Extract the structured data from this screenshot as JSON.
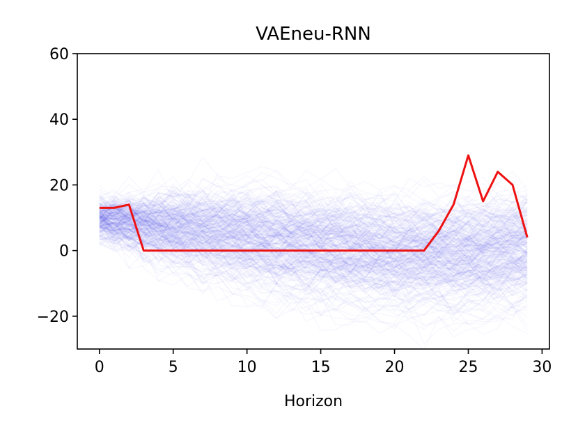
{
  "chart_data": {
    "type": "line",
    "title": "VAEneu-RNN",
    "xlabel": "Horizon",
    "ylabel": "",
    "xlim": [
      -1.5,
      30.5
    ],
    "ylim": [
      -30,
      60
    ],
    "x_ticks": [
      0,
      5,
      10,
      15,
      20,
      25,
      30
    ],
    "y_ticks": [
      -20,
      0,
      20,
      40,
      60
    ],
    "x_tick_labels": [
      "0",
      "5",
      "10",
      "15",
      "20",
      "25",
      "30"
    ],
    "y_tick_labels": [
      "−20",
      "0",
      "20",
      "40",
      "60"
    ],
    "grid": false,
    "series": [
      {
        "role": "target",
        "color": "#ee1111",
        "x": [
          0,
          1,
          2,
          3,
          4,
          5,
          6,
          7,
          8,
          9,
          10,
          11,
          12,
          13,
          14,
          15,
          16,
          17,
          18,
          19,
          20,
          21,
          22,
          23,
          24,
          25,
          26,
          27,
          28,
          29
        ],
        "values": [
          13,
          13,
          14,
          0,
          0,
          0,
          0,
          0,
          0,
          0,
          0,
          0,
          0,
          0,
          0,
          0,
          0,
          0,
          0,
          0,
          0,
          0,
          0,
          6,
          14,
          29,
          15,
          24,
          20,
          4
        ]
      }
    ],
    "sample_band": {
      "color": "#3333ee",
      "count": 300,
      "x": [
        0,
        1,
        2,
        3,
        4,
        5,
        6,
        7,
        8,
        9,
        10,
        11,
        12,
        13,
        14,
        15,
        16,
        17,
        18,
        19,
        20,
        21,
        22,
        23,
        24,
        25,
        26,
        27,
        28,
        29
      ],
      "mean": [
        10,
        9.5,
        9,
        8.5,
        8,
        7.5,
        7,
        6.5,
        6,
        5.5,
        5,
        4.5,
        4,
        3.5,
        3,
        2.5,
        2,
        1.5,
        1,
        0.5,
        0,
        0,
        0,
        0,
        0,
        0,
        0.5,
        1,
        1.5,
        2
      ],
      "spread": [
        4,
        5,
        6,
        7,
        8,
        9,
        10,
        10.5,
        11,
        11.5,
        12,
        12.5,
        13,
        13,
        13,
        13,
        13,
        13,
        13,
        13,
        13,
        13,
        13,
        13,
        13,
        13,
        13,
        13,
        13,
        13
      ]
    }
  }
}
